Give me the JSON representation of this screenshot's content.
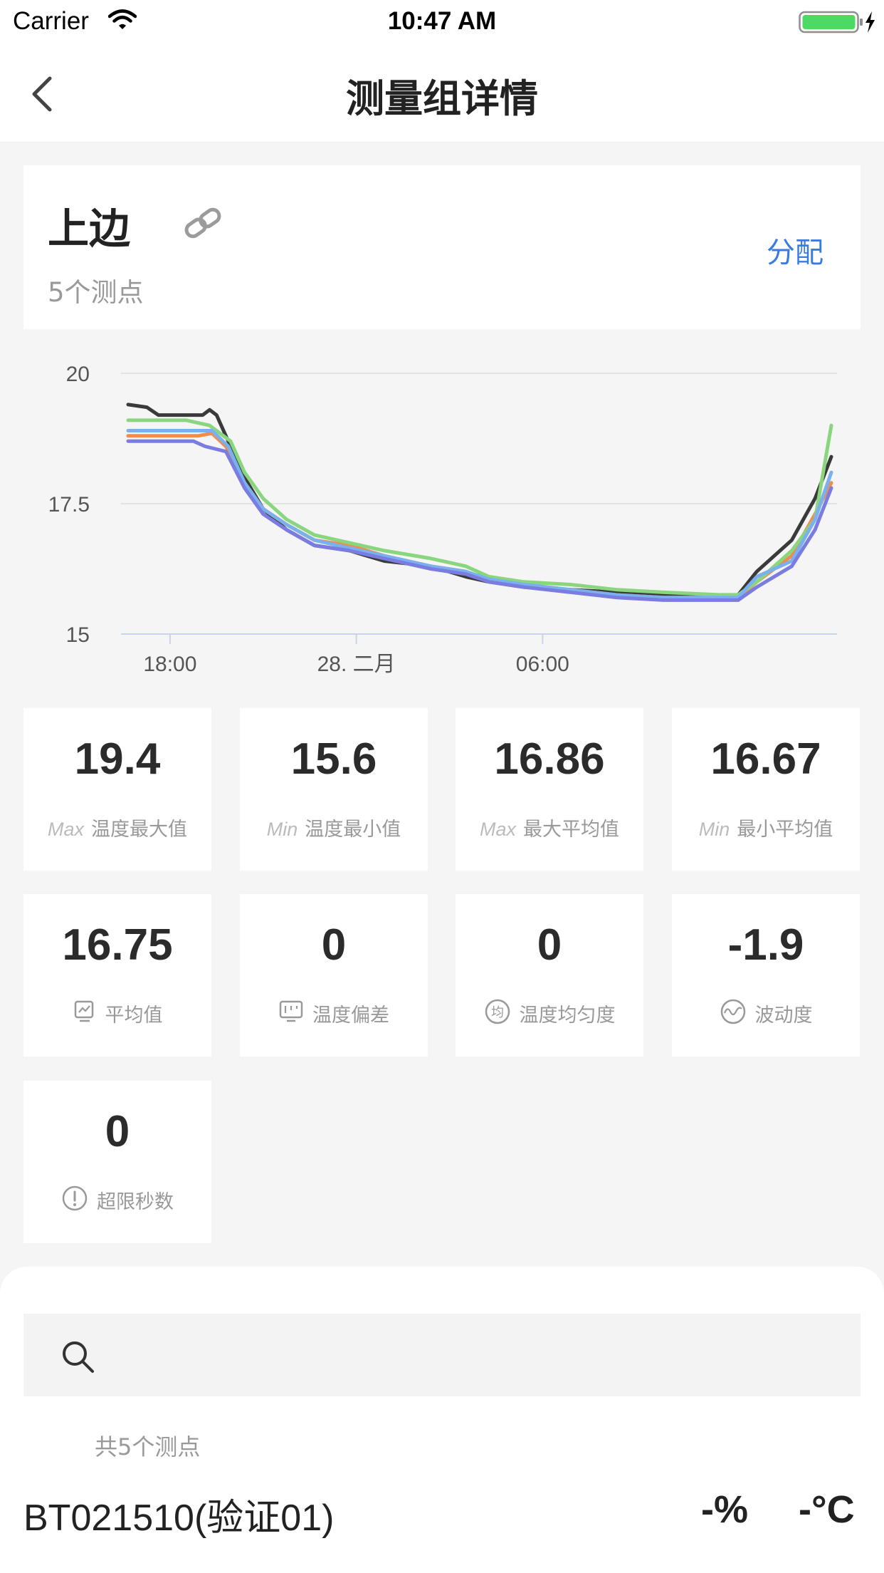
{
  "status_bar": {
    "carrier": "Carrier",
    "time": "10:47 AM",
    "wifi_icon": "wifi-icon",
    "battery_icon": "battery-charging-icon"
  },
  "nav": {
    "title": "测量组详情",
    "back_icon": "chevron-left-icon"
  },
  "group": {
    "name": "上边",
    "point_count_label": "5个测点",
    "assign_label": "分配",
    "link_icon": "link-icon"
  },
  "chart_data": {
    "type": "line",
    "xlabel": "",
    "ylabel": "",
    "ylim": [
      15,
      20
    ],
    "yticks": [
      "20",
      "17.5",
      "15"
    ],
    "xticks": [
      "18:00",
      "28. 二月",
      "06:00"
    ],
    "x_start_hour": 17.0,
    "x_hours_span": 17.0,
    "grid": true,
    "series": [
      {
        "color": "#3a3a3a",
        "points": [
          [
            0,
            19.4
          ],
          [
            0.8,
            19.35
          ],
          [
            1.3,
            19.2
          ],
          [
            3.2,
            19.2
          ],
          [
            3.5,
            19.3
          ],
          [
            3.8,
            19.2
          ],
          [
            4.4,
            18.6
          ],
          [
            5,
            18
          ],
          [
            5.8,
            17.4
          ],
          [
            6.8,
            17
          ],
          [
            8,
            16.7
          ],
          [
            9.5,
            16.6
          ],
          [
            11,
            16.4
          ],
          [
            13,
            16.3
          ],
          [
            14.5,
            16.1
          ],
          [
            15.5,
            16.0
          ],
          [
            17,
            15.9
          ],
          [
            19,
            15.85
          ],
          [
            21,
            15.8
          ],
          [
            23,
            15.75
          ],
          [
            25.5,
            15.75
          ],
          [
            26.2,
            15.75
          ],
          [
            27,
            16.2
          ],
          [
            28.5,
            16.8
          ],
          [
            29.5,
            17.6
          ],
          [
            30.2,
            18.4
          ]
        ]
      },
      {
        "color": "#f08d4a",
        "points": [
          [
            0,
            18.8
          ],
          [
            3,
            18.8
          ],
          [
            3.6,
            18.85
          ],
          [
            4.2,
            18.6
          ],
          [
            5,
            17.9
          ],
          [
            5.8,
            17.4
          ],
          [
            6.8,
            17.1
          ],
          [
            8,
            16.8
          ],
          [
            9.5,
            16.7
          ],
          [
            11,
            16.5
          ],
          [
            13,
            16.3
          ],
          [
            14.5,
            16.2
          ],
          [
            15.5,
            16.0
          ],
          [
            17,
            15.95
          ],
          [
            19,
            15.85
          ],
          [
            21,
            15.75
          ],
          [
            23,
            15.7
          ],
          [
            25.5,
            15.7
          ],
          [
            26.2,
            15.7
          ],
          [
            27,
            16.0
          ],
          [
            28.5,
            16.5
          ],
          [
            29.5,
            17.3
          ],
          [
            30.2,
            17.9
          ]
        ]
      },
      {
        "color": "#8ad67e",
        "points": [
          [
            0,
            19.1
          ],
          [
            2.5,
            19.1
          ],
          [
            3.5,
            19.0
          ],
          [
            4.4,
            18.7
          ],
          [
            5,
            18.1
          ],
          [
            5.8,
            17.6
          ],
          [
            6.8,
            17.2
          ],
          [
            8,
            16.9
          ],
          [
            9.5,
            16.75
          ],
          [
            11,
            16.6
          ],
          [
            13,
            16.45
          ],
          [
            14.5,
            16.3
          ],
          [
            15.5,
            16.1
          ],
          [
            17,
            16.0
          ],
          [
            19,
            15.95
          ],
          [
            21,
            15.85
          ],
          [
            23,
            15.8
          ],
          [
            25.5,
            15.75
          ],
          [
            26.2,
            15.75
          ],
          [
            27,
            16.0
          ],
          [
            28.5,
            16.6
          ],
          [
            29.5,
            17.2
          ],
          [
            30.2,
            19.0
          ]
        ]
      },
      {
        "color": "#7ab0ee",
        "points": [
          [
            0,
            18.9
          ],
          [
            3,
            18.9
          ],
          [
            3.6,
            18.9
          ],
          [
            4.3,
            18.6
          ],
          [
            5,
            17.9
          ],
          [
            5.8,
            17.4
          ],
          [
            6.8,
            17.1
          ],
          [
            8,
            16.8
          ],
          [
            9.5,
            16.65
          ],
          [
            11,
            16.5
          ],
          [
            13,
            16.3
          ],
          [
            14.5,
            16.2
          ],
          [
            15.5,
            16.05
          ],
          [
            17,
            15.95
          ],
          [
            19,
            15.85
          ],
          [
            21,
            15.75
          ],
          [
            23,
            15.7
          ],
          [
            25.5,
            15.7
          ],
          [
            26.2,
            15.7
          ],
          [
            27,
            16.1
          ],
          [
            28.5,
            16.4
          ],
          [
            29.5,
            17.2
          ],
          [
            30.2,
            18.1
          ]
        ]
      },
      {
        "color": "#7a7ce0",
        "points": [
          [
            0,
            18.7
          ],
          [
            2.8,
            18.7
          ],
          [
            3.3,
            18.6
          ],
          [
            4.2,
            18.5
          ],
          [
            5,
            17.8
          ],
          [
            5.8,
            17.3
          ],
          [
            6.8,
            17.0
          ],
          [
            8,
            16.7
          ],
          [
            9.5,
            16.6
          ],
          [
            11,
            16.45
          ],
          [
            13,
            16.25
          ],
          [
            14.5,
            16.15
          ],
          [
            15.5,
            16.0
          ],
          [
            17,
            15.9
          ],
          [
            19,
            15.8
          ],
          [
            21,
            15.7
          ],
          [
            23,
            15.65
          ],
          [
            25.5,
            15.65
          ],
          [
            26.2,
            15.65
          ],
          [
            27,
            15.9
          ],
          [
            28.5,
            16.3
          ],
          [
            29.5,
            17.0
          ],
          [
            30.2,
            17.8
          ]
        ]
      }
    ]
  },
  "stats": [
    {
      "value": "19.4",
      "prefix": "Max",
      "label": "温度最大值",
      "icon": ""
    },
    {
      "value": "15.6",
      "prefix": "Min",
      "label": "温度最小值",
      "icon": ""
    },
    {
      "value": "16.86",
      "prefix": "Max",
      "label": "最大平均值",
      "icon": ""
    },
    {
      "value": "16.67",
      "prefix": "Min",
      "label": "最小平均值",
      "icon": ""
    },
    {
      "value": "16.75",
      "prefix": "",
      "label": "平均值",
      "icon": "average-icon"
    },
    {
      "value": "0",
      "prefix": "",
      "label": "温度偏差",
      "icon": "deviation-icon"
    },
    {
      "value": "0",
      "prefix": "",
      "label": "温度均匀度",
      "icon": "uniformity-icon",
      "icon_text": "均"
    },
    {
      "value": "-1.9",
      "prefix": "",
      "label": "波动度",
      "icon": "fluctuation-icon"
    },
    {
      "value": "0",
      "prefix": "",
      "label": "超限秒数",
      "icon": "alert-icon"
    }
  ],
  "list": {
    "search_icon": "search-icon",
    "count_label": "共5个测点",
    "devices": [
      {
        "name": "BT021510(验证01)",
        "humidity": "-%",
        "temperature": "-°C"
      }
    ]
  }
}
